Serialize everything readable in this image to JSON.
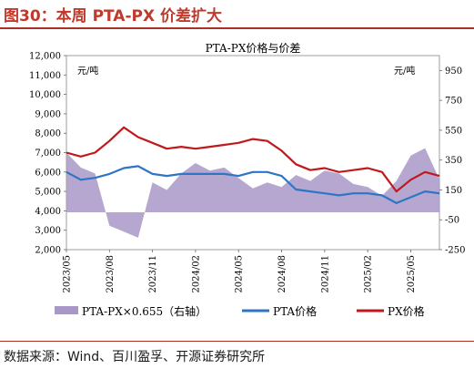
{
  "figure_title": "图30：本周 PTA-PX 价差扩大",
  "source_note": "数据来源：Wind、百川盈孚、开源证券研究所",
  "chart_data": {
    "type": "line",
    "title": "PTA-PX价格与价差",
    "left_unit": "元/吨",
    "right_unit": "元/吨",
    "x_tick_labels": [
      "2023/05",
      "2023/08",
      "2023/11",
      "2024/02",
      "2024/05",
      "2024/08",
      "2024/11",
      "2025/02",
      "2025/05"
    ],
    "x_start": "2023/05",
    "x_end": "2025/07",
    "left_axis": {
      "min": 2000,
      "max": 12000,
      "ticks": [
        "2,000",
        "3,000",
        "4,000",
        "5,000",
        "6,000",
        "7,000",
        "8,000",
        "9,000",
        "10,000",
        "11,000",
        "12,000"
      ]
    },
    "right_axis": {
      "min": -250,
      "max": 1050,
      "ticks": [
        "-250",
        "-50",
        "150",
        "350",
        "550",
        "750",
        "950"
      ]
    },
    "legend": [
      "PTA-PX×0.655（右轴）",
      "PTA价格",
      "PX价格"
    ],
    "series": [
      {
        "name": "PTA-PX×0.655（右轴）",
        "type": "area",
        "axis": "right",
        "color": "#a898c8",
        "x": [
          "2023/05",
          "2023/06",
          "2023/07",
          "2023/08",
          "2023/09",
          "2023/10",
          "2023/11",
          "2023/12",
          "2024/01",
          "2024/02",
          "2024/03",
          "2024/04",
          "2024/05",
          "2024/06",
          "2024/07",
          "2024/08",
          "2024/09",
          "2024/10",
          "2024/11",
          "2024/12",
          "2025/01",
          "2025/02",
          "2025/03",
          "2025/04",
          "2025/05",
          "2025/06",
          "2025/07"
        ],
        "values": [
          400,
          300,
          260,
          -90,
          -130,
          -170,
          200,
          150,
          260,
          330,
          280,
          300,
          230,
          160,
          200,
          170,
          250,
          210,
          280,
          260,
          190,
          170,
          110,
          210,
          380,
          430,
          220
        ]
      },
      {
        "name": "PTA价格",
        "type": "line",
        "axis": "left",
        "color": "#2e75c4",
        "x": [
          "2023/05",
          "2023/06",
          "2023/07",
          "2023/08",
          "2023/09",
          "2023/10",
          "2023/11",
          "2023/12",
          "2024/01",
          "2024/02",
          "2024/03",
          "2024/04",
          "2024/05",
          "2024/06",
          "2024/07",
          "2024/08",
          "2024/09",
          "2024/10",
          "2024/11",
          "2024/12",
          "2025/01",
          "2025/02",
          "2025/03",
          "2025/04",
          "2025/05",
          "2025/06",
          "2025/07"
        ],
        "values": [
          6000,
          5600,
          5700,
          5900,
          6200,
          6300,
          5900,
          5800,
          5900,
          5900,
          5900,
          5900,
          5800,
          6000,
          6000,
          5800,
          5100,
          5000,
          4900,
          4800,
          4900,
          4900,
          4800,
          4400,
          4700,
          5000,
          4900
        ]
      },
      {
        "name": "PX价格",
        "type": "line",
        "axis": "left",
        "color": "#c0191c",
        "x": [
          "2023/05",
          "2023/06",
          "2023/07",
          "2023/08",
          "2023/09",
          "2023/10",
          "2023/11",
          "2023/12",
          "2024/01",
          "2024/02",
          "2024/03",
          "2024/04",
          "2024/05",
          "2024/06",
          "2024/07",
          "2024/08",
          "2024/09",
          "2024/10",
          "2024/11",
          "2024/12",
          "2025/01",
          "2025/02",
          "2025/03",
          "2025/04",
          "2025/05",
          "2025/06",
          "2025/07"
        ],
        "values": [
          7000,
          6800,
          7000,
          7600,
          8300,
          7800,
          7500,
          7200,
          7300,
          7200,
          7300,
          7400,
          7500,
          7700,
          7600,
          7100,
          6400,
          6100,
          6200,
          6000,
          6100,
          6200,
          6000,
          5000,
          5600,
          6000,
          5800
        ]
      }
    ]
  }
}
